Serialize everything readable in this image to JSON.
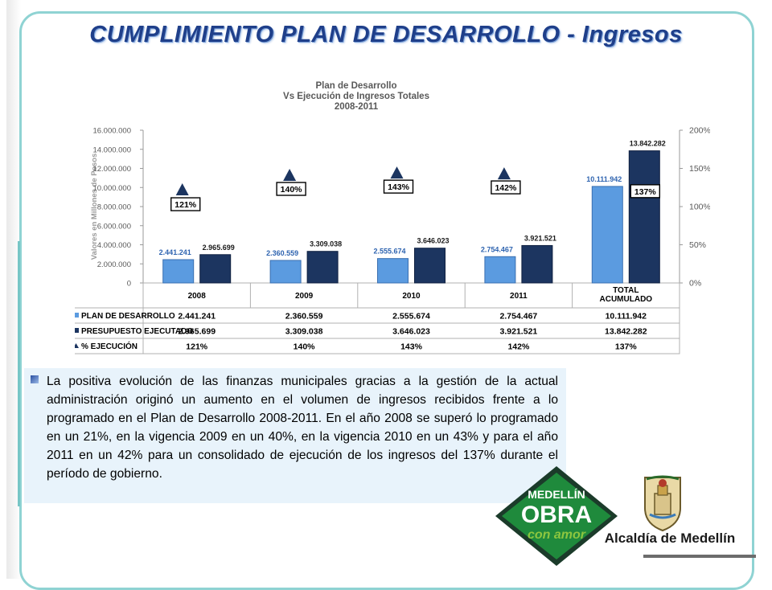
{
  "page": {
    "title": "CUMPLIMIENTO PLAN DE DESARROLLO - Ingresos",
    "paragraph": "La positiva evolución de las finanzas municipales gracias a la gestión de la actual administración originó un aumento en el volumen de ingresos recibidos frente a lo programado en el Plan de Desarrollo 2008-2011. En el año 2008 se superó lo programado en un 21%, en la vigencia 2009 en un 40%,  en la vigencia 2010 en un 43% y para el año 2011 en un 42% para un consolidado de ejecución de los ingresos del 137% durante el período de gobierno."
  },
  "logo": {
    "line1": "MEDELLÍN",
    "line2": "OBRA",
    "line3": "con amor",
    "alcaldia": "Alcaldía de Medellín",
    "colors": {
      "green": "#1f8a3c",
      "dark": "#1b3b2a",
      "light": "#8dc63f"
    }
  },
  "colors": {
    "title": "#1f3f8a",
    "plan": "#5b9be0",
    "executed": "#1c3560",
    "frame": "#8fd3d3"
  },
  "chart_data": {
    "type": "bar",
    "title": [
      "Plan de Desarrollo",
      "Vs Ejecución de Ingresos Totales",
      "2008-2011"
    ],
    "ylabel": "Valores en Millones de Pesos",
    "ylim": [
      0,
      16000000
    ],
    "y_ticks": [
      "0",
      "2.000.000",
      "4.000.000",
      "6.000.000",
      "8.000.000",
      "10.000.000",
      "12.000.000",
      "14.000.000",
      "16.000.000"
    ],
    "y2lim": [
      0,
      200
    ],
    "y2_ticks": [
      "0%",
      "50%",
      "100%",
      "150%",
      "200%"
    ],
    "categories": [
      "2008",
      "2009",
      "2010",
      "2011",
      "TOTAL ACUMULADO"
    ],
    "category_lines": [
      [
        "2008"
      ],
      [
        "2009"
      ],
      [
        "2010"
      ],
      [
        "2011"
      ],
      [
        "TOTAL",
        "ACUMULADO"
      ]
    ],
    "series": [
      {
        "name": "PLAN DE DESARROLLO",
        "values": [
          2441241,
          2360559,
          2555674,
          2754467,
          10111942
        ],
        "labels": [
          "2.441.241",
          "2.360.559",
          "2.555.674",
          "2.754.467",
          "10.111.942"
        ]
      },
      {
        "name": "PRESUPUESTO EJECUTADO",
        "values": [
          2965699,
          3309038,
          3646023,
          3921521,
          13842282
        ],
        "labels": [
          "2.965.699",
          "3.309.038",
          "3.646.023",
          "3.921.521",
          "13.842.282"
        ]
      },
      {
        "name": "% EJECUCIÓN",
        "axis": "secondary",
        "values": [
          121,
          140,
          143,
          142,
          137
        ],
        "labels": [
          "121%",
          "140%",
          "143%",
          "142%",
          "137%"
        ]
      }
    ],
    "grid": false,
    "legend": "table-below"
  }
}
